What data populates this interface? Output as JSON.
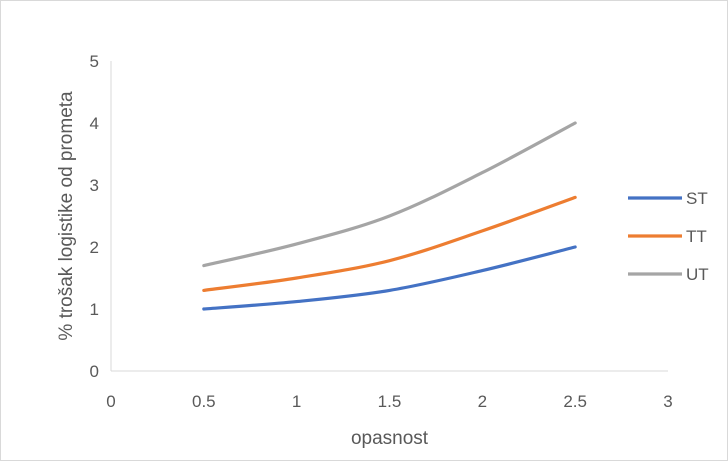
{
  "chart_data": {
    "type": "line",
    "title": "",
    "xlabel": "opasnost",
    "ylabel": "% trošak logistike od prometa",
    "xlim": [
      0,
      3
    ],
    "ylim": [
      0,
      5
    ],
    "x_ticks": [
      "0",
      "0.5",
      "1",
      "1.5",
      "2",
      "2.5",
      "3"
    ],
    "y_ticks": [
      "0",
      "1",
      "2",
      "3",
      "4",
      "5"
    ],
    "grid": false,
    "legend_position": "right",
    "x": [
      0.5,
      1,
      1.5,
      2,
      2.5
    ],
    "series": [
      {
        "name": "ST",
        "color": "#4472C4",
        "values": [
          1.0,
          1.12,
          1.3,
          1.62,
          2.0
        ]
      },
      {
        "name": "TT",
        "color": "#ED7D31",
        "values": [
          1.3,
          1.5,
          1.78,
          2.26,
          2.8
        ]
      },
      {
        "name": "UT",
        "color": "#A5A5A5",
        "values": [
          1.7,
          2.05,
          2.5,
          3.2,
          4.0
        ]
      }
    ]
  }
}
